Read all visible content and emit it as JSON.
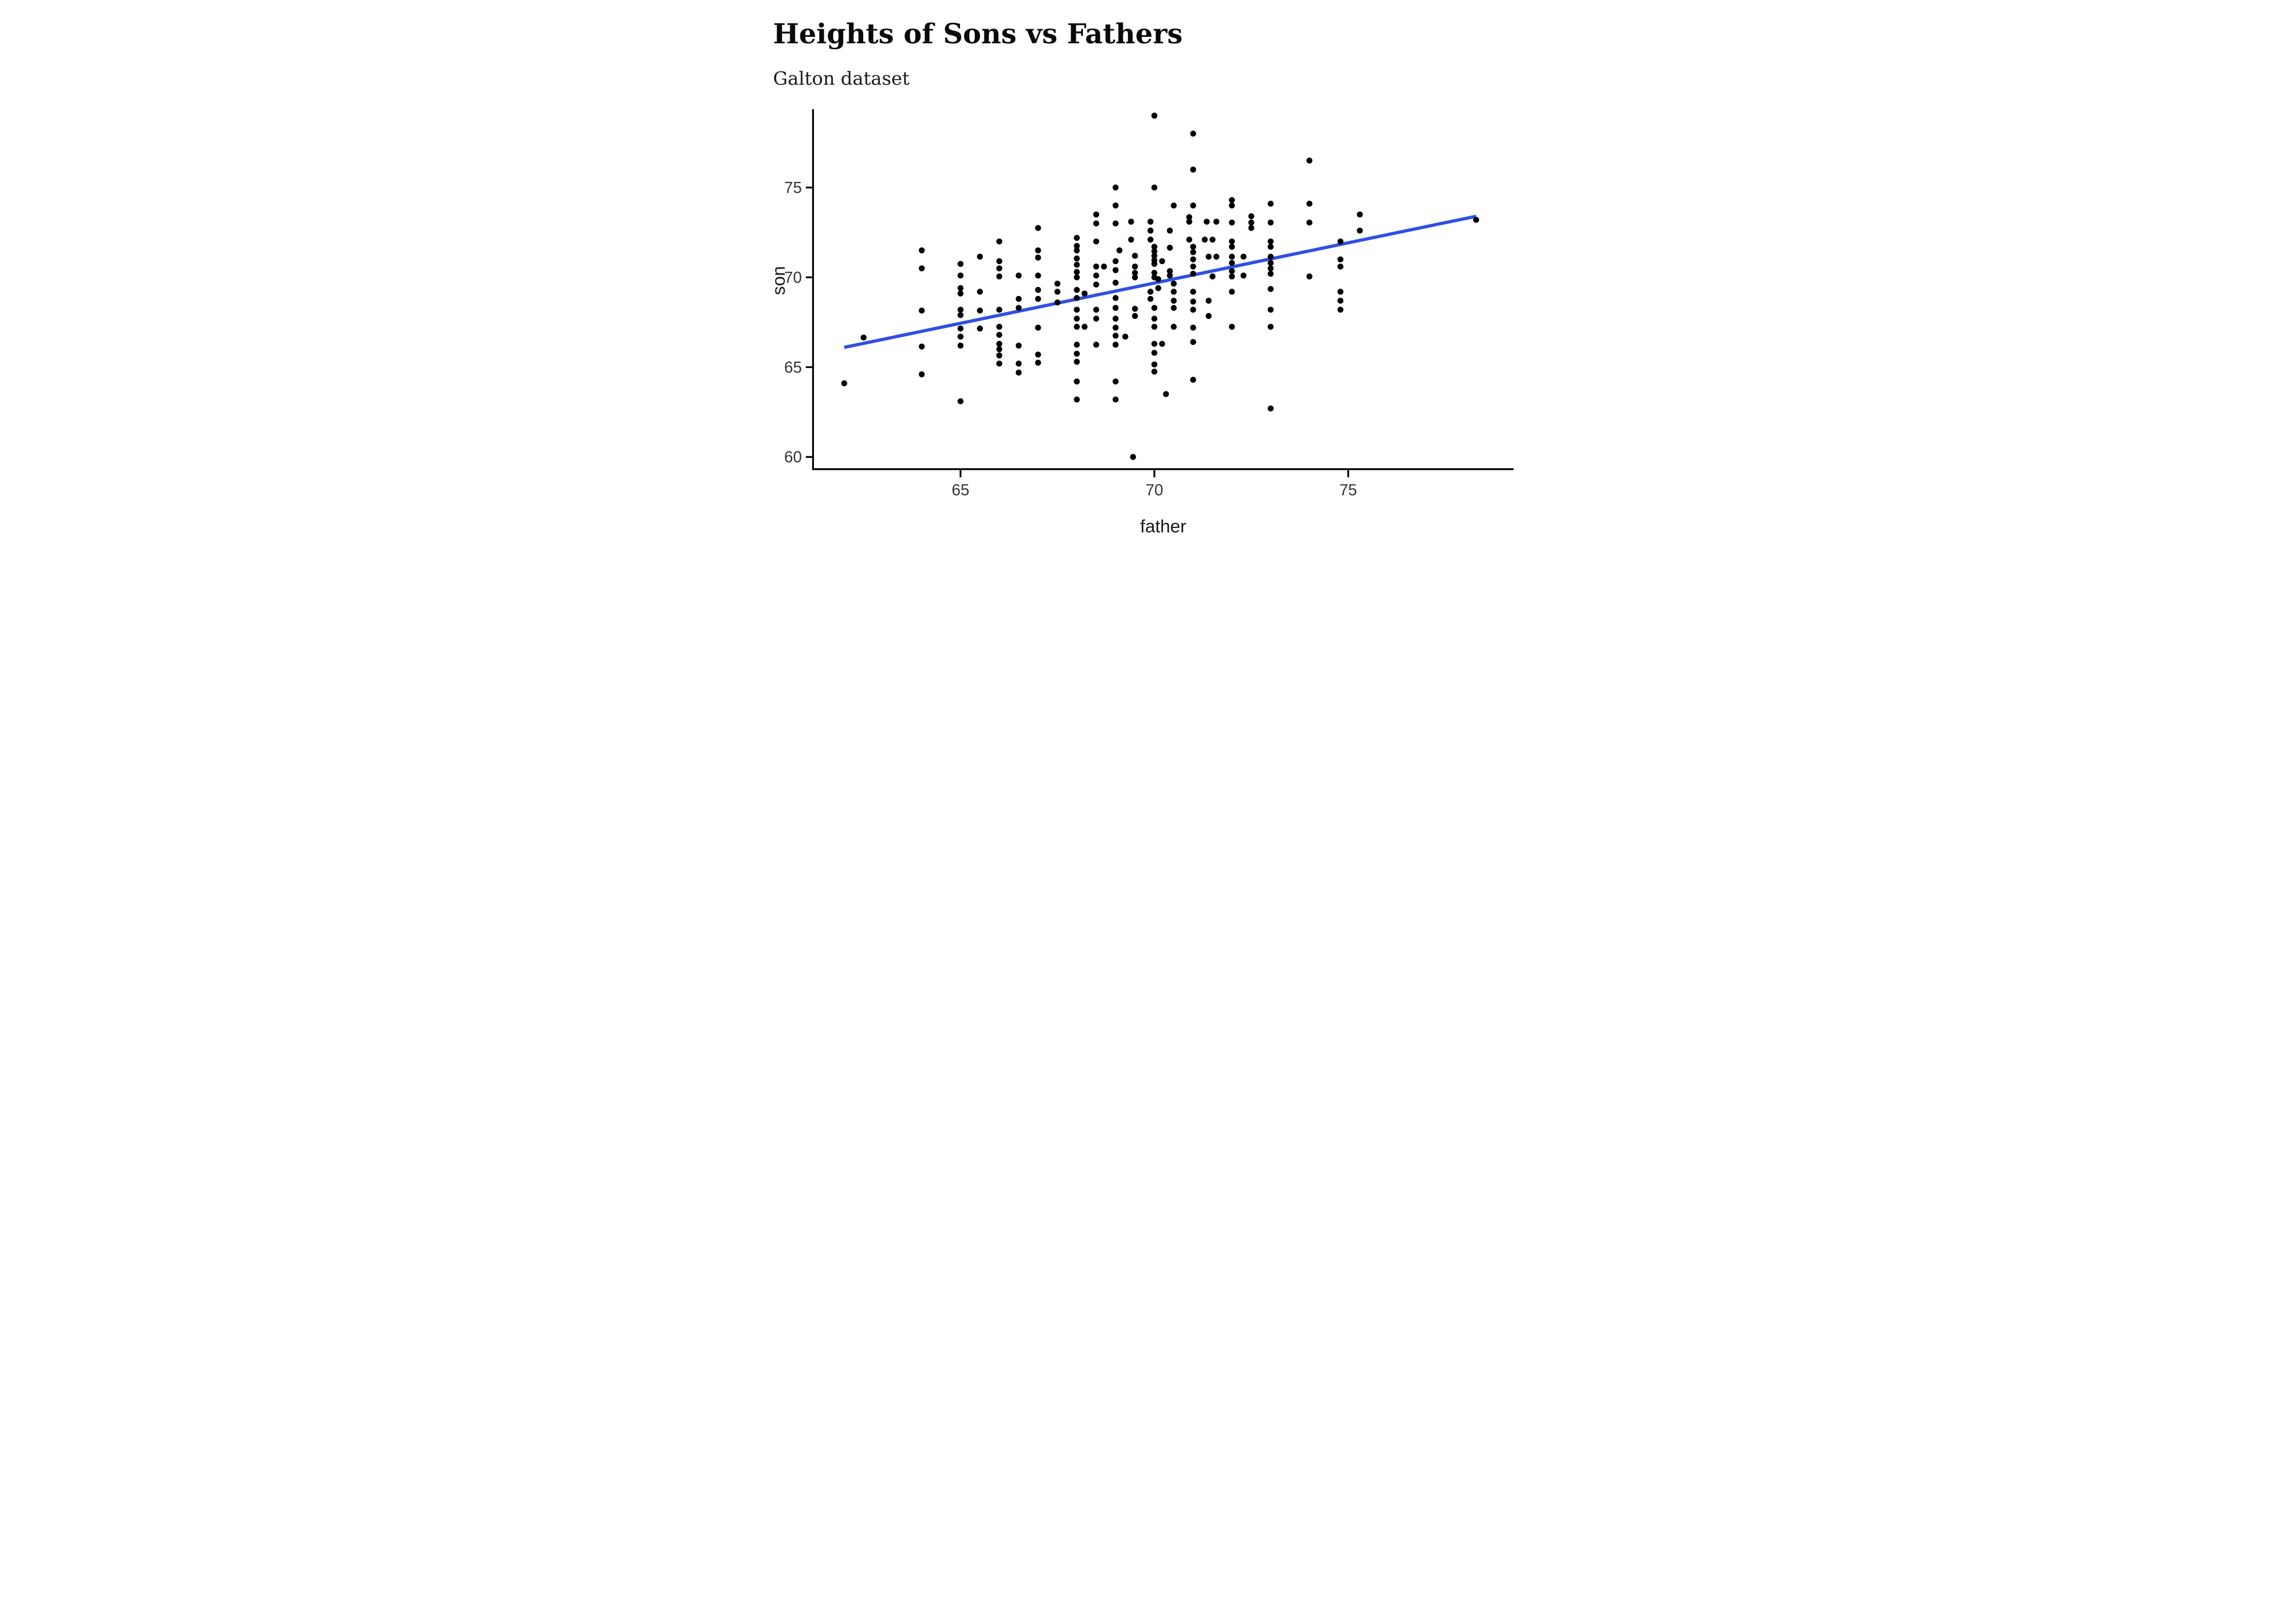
{
  "header": {
    "title": "Heights of Sons vs Fathers",
    "subtitle": "Galton dataset"
  },
  "chart_data": {
    "type": "scatter",
    "title": "Heights of Sons vs Fathers",
    "subtitle": "Galton dataset",
    "xlabel": "father",
    "ylabel": "son",
    "x_ticks": [
      65,
      70,
      75
    ],
    "y_ticks": [
      60,
      65,
      70,
      75
    ],
    "xlim": [
      61.2,
      79.3
    ],
    "ylim": [
      59.3,
      79.4
    ],
    "grid": "off",
    "legend": "none",
    "point_color": "#000000",
    "axis_color": "#000000",
    "tick_label_color": "#333333",
    "trend_line": {
      "type": "linear",
      "x1": 62.0,
      "y1": 66.1,
      "x2": 78.3,
      "y2": 73.4,
      "color": "#2F4FE4"
    },
    "points": [
      [
        62,
        64.1
      ],
      [
        62.5,
        66.65
      ],
      [
        64,
        71.5
      ],
      [
        64,
        70.5
      ],
      [
        64,
        68.15
      ],
      [
        64,
        66.15
      ],
      [
        64,
        64.6
      ],
      [
        65,
        70.75
      ],
      [
        65,
        70.1
      ],
      [
        65,
        69.4
      ],
      [
        65,
        69.1
      ],
      [
        65,
        68.2
      ],
      [
        65,
        67.9
      ],
      [
        65,
        67.15
      ],
      [
        65,
        66.7
      ],
      [
        65,
        66.2
      ],
      [
        65,
        63.1
      ],
      [
        65.5,
        71.15
      ],
      [
        65.5,
        69.2
      ],
      [
        65.5,
        68.15
      ],
      [
        65.5,
        67.15
      ],
      [
        66,
        72
      ],
      [
        66,
        70.9
      ],
      [
        66,
        70.5
      ],
      [
        66,
        70.05
      ],
      [
        66,
        68.2
      ],
      [
        66,
        67.25
      ],
      [
        66,
        66.8
      ],
      [
        66,
        66.3
      ],
      [
        66,
        66
      ],
      [
        66,
        65.65
      ],
      [
        66,
        65.2
      ],
      [
        66.5,
        70.1
      ],
      [
        66.5,
        68.8
      ],
      [
        66.5,
        68.3
      ],
      [
        66.5,
        66.2
      ],
      [
        66.5,
        65.2
      ],
      [
        66.5,
        64.7
      ],
      [
        67,
        72.75
      ],
      [
        67,
        71.5
      ],
      [
        67,
        71.1
      ],
      [
        67,
        70.1
      ],
      [
        67,
        69.3
      ],
      [
        67,
        68.8
      ],
      [
        67,
        67.2
      ],
      [
        67,
        65.7
      ],
      [
        67,
        65.25
      ],
      [
        67.5,
        69.65
      ],
      [
        67.5,
        69.2
      ],
      [
        67.5,
        68.6
      ],
      [
        68,
        72.2
      ],
      [
        68,
        71.75
      ],
      [
        68,
        71.5
      ],
      [
        68,
        71.05
      ],
      [
        68,
        70.7
      ],
      [
        68,
        70.3
      ],
      [
        68,
        70
      ],
      [
        68,
        69.3
      ],
      [
        68.2,
        69.1
      ],
      [
        68,
        68.85
      ],
      [
        68,
        68.2
      ],
      [
        68,
        67.7
      ],
      [
        68,
        67.25
      ],
      [
        68.2,
        67.25
      ],
      [
        68,
        66.25
      ],
      [
        68,
        65.75
      ],
      [
        68,
        65.3
      ],
      [
        68,
        64.2
      ],
      [
        68,
        63.2
      ],
      [
        68.5,
        73.5
      ],
      [
        68.5,
        73
      ],
      [
        68.5,
        72
      ],
      [
        68.5,
        70.6
      ],
      [
        68.7,
        70.6
      ],
      [
        68.5,
        70.1
      ],
      [
        68.5,
        69.6
      ],
      [
        68.5,
        68.2
      ],
      [
        68.5,
        67.7
      ],
      [
        68.5,
        66.25
      ],
      [
        69,
        75
      ],
      [
        69,
        74
      ],
      [
        69,
        73
      ],
      [
        69.1,
        71.5
      ],
      [
        69,
        70.9
      ],
      [
        69,
        70.4
      ],
      [
        69,
        69.7
      ],
      [
        69,
        68.85
      ],
      [
        69,
        68.3
      ],
      [
        69,
        67.7
      ],
      [
        69,
        67.2
      ],
      [
        69,
        66.75
      ],
      [
        69.25,
        66.7
      ],
      [
        69,
        66.25
      ],
      [
        69,
        64.2
      ],
      [
        69,
        63.2
      ],
      [
        69.4,
        73.1
      ],
      [
        69.4,
        72.1
      ],
      [
        69.5,
        71.2
      ],
      [
        69.5,
        70.6
      ],
      [
        69.5,
        70.25
      ],
      [
        69.5,
        70
      ],
      [
        69.5,
        68.25
      ],
      [
        69.5,
        67.85
      ],
      [
        69.45,
        60
      ],
      [
        70,
        79
      ],
      [
        70,
        75
      ],
      [
        69.9,
        73.1
      ],
      [
        69.9,
        72.6
      ],
      [
        69.9,
        72.1
      ],
      [
        70,
        71.7
      ],
      [
        70,
        71.45
      ],
      [
        70,
        71.2
      ],
      [
        70,
        70.95
      ],
      [
        70,
        70.75
      ],
      [
        70,
        70.25
      ],
      [
        70,
        70
      ],
      [
        70.2,
        70.9
      ],
      [
        70.1,
        69.9
      ],
      [
        70.1,
        69.4
      ],
      [
        69.9,
        69.2
      ],
      [
        69.9,
        68.8
      ],
      [
        70,
        68.3
      ],
      [
        70,
        67.7
      ],
      [
        70,
        67.25
      ],
      [
        70,
        66.3
      ],
      [
        70.2,
        66.3
      ],
      [
        70,
        65.8
      ],
      [
        70,
        65.15
      ],
      [
        70,
        64.75
      ],
      [
        70.3,
        63.5
      ],
      [
        70.5,
        74
      ],
      [
        70.4,
        72.6
      ],
      [
        70.4,
        71.65
      ],
      [
        70.4,
        70.35
      ],
      [
        70.4,
        70.1
      ],
      [
        70.5,
        69.65
      ],
      [
        70.5,
        69.2
      ],
      [
        70.5,
        68.7
      ],
      [
        70.5,
        68.3
      ],
      [
        70.5,
        67.25
      ],
      [
        71,
        78
      ],
      [
        71,
        76
      ],
      [
        71,
        74
      ],
      [
        70.9,
        73.35
      ],
      [
        70.9,
        73.1
      ],
      [
        70.9,
        72.1
      ],
      [
        71,
        71.7
      ],
      [
        71,
        71.4
      ],
      [
        71,
        71
      ],
      [
        71,
        70.6
      ],
      [
        71,
        70.2
      ],
      [
        71,
        69.2
      ],
      [
        71,
        68.65
      ],
      [
        71,
        68.2
      ],
      [
        71,
        67.2
      ],
      [
        71,
        66.4
      ],
      [
        71,
        64.3
      ],
      [
        71.35,
        73.1
      ],
      [
        71.6,
        73.1
      ],
      [
        71.3,
        72.1
      ],
      [
        71.5,
        72.1
      ],
      [
        71.4,
        71.15
      ],
      [
        71.6,
        71.15
      ],
      [
        71.5,
        70.05
      ],
      [
        71.4,
        68.7
      ],
      [
        71.4,
        67.85
      ],
      [
        72,
        74.3
      ],
      [
        72,
        74
      ],
      [
        72,
        73.05
      ],
      [
        72,
        72
      ],
      [
        72,
        71.7
      ],
      [
        72,
        71.15
      ],
      [
        72,
        70.8
      ],
      [
        72,
        70.35
      ],
      [
        72,
        70.05
      ],
      [
        72,
        69.2
      ],
      [
        72,
        67.25
      ],
      [
        72.3,
        71.15
      ],
      [
        72.3,
        70.1
      ],
      [
        72.5,
        73.4
      ],
      [
        72.5,
        73.05
      ],
      [
        72.5,
        72.75
      ],
      [
        73,
        74.1
      ],
      [
        73,
        73.05
      ],
      [
        73,
        72
      ],
      [
        73,
        71.7
      ],
      [
        73,
        71.15
      ],
      [
        73,
        70.8
      ],
      [
        73,
        70.5
      ],
      [
        73,
        70.2
      ],
      [
        73,
        69.35
      ],
      [
        73,
        68.2
      ],
      [
        73,
        67.25
      ],
      [
        73,
        62.7
      ],
      [
        74,
        76.5
      ],
      [
        74,
        74.1
      ],
      [
        74,
        73.05
      ],
      [
        74,
        70.05
      ],
      [
        74.8,
        72
      ],
      [
        74.8,
        71
      ],
      [
        74.8,
        70.6
      ],
      [
        74.8,
        69.2
      ],
      [
        74.8,
        68.7
      ],
      [
        74.8,
        68.2
      ],
      [
        75.3,
        73.5
      ],
      [
        75.3,
        72.6
      ],
      [
        78.3,
        73.2
      ]
    ]
  }
}
